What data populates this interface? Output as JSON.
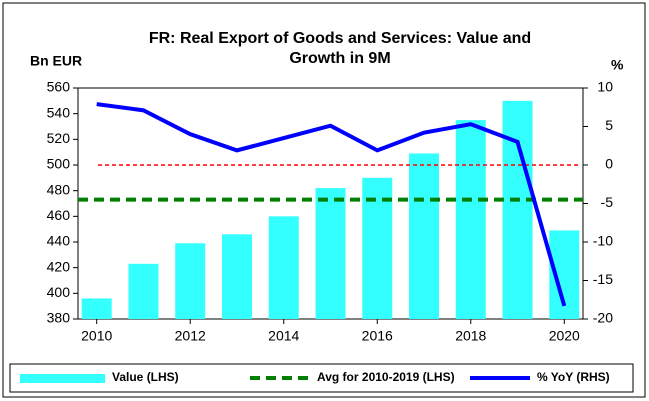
{
  "chart_data": {
    "type": "bar",
    "title": "FR: Real Export of Goods and Services: Value and Growth in 9M",
    "ylabel": "Bn EUR",
    "y2label": "%",
    "x": [
      2010,
      2011,
      2012,
      2013,
      2014,
      2015,
      2016,
      2017,
      2018,
      2019,
      2020
    ],
    "xlim": [
      2009.6,
      2020.4
    ],
    "xticks": [
      2010,
      2012,
      2014,
      2016,
      2018,
      2020
    ],
    "ylim": [
      380,
      560
    ],
    "yticks": [
      380,
      400,
      420,
      440,
      460,
      480,
      500,
      520,
      540,
      560
    ],
    "y2lim": [
      -20,
      10
    ],
    "y2ticks": [
      -20,
      -15,
      -10,
      -5,
      0,
      5,
      10
    ],
    "series": [
      {
        "name": "Value (LHS)",
        "type": "bar",
        "color": "#33ffff",
        "values": [
          396,
          423,
          439,
          446,
          460,
          482,
          490,
          509,
          535,
          550,
          449
        ]
      },
      {
        "name": "Avg for 2010-2019 (LHS)",
        "type": "hline",
        "color": "#008000",
        "value": 473
      },
      {
        "name": "% YoY (RHS)",
        "type": "line",
        "axis": "y2",
        "color": "#0000ff",
        "values": [
          7.9,
          7.1,
          4.0,
          1.9,
          3.5,
          5.1,
          1.9,
          4.2,
          5.3,
          3.0,
          -18.3
        ]
      }
    ],
    "reference_line": {
      "axis": "y2",
      "value": 0,
      "color": "#ff0000"
    }
  }
}
